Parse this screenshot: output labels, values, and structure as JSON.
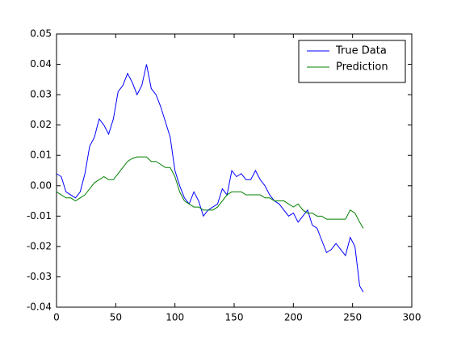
{
  "chart_data": {
    "type": "line",
    "x": [
      0,
      4,
      8,
      12,
      16,
      20,
      24,
      28,
      32,
      36,
      40,
      44,
      48,
      52,
      56,
      60,
      64,
      68,
      72,
      76,
      80,
      84,
      88,
      92,
      96,
      100,
      104,
      108,
      112,
      116,
      120,
      124,
      128,
      132,
      136,
      140,
      144,
      148,
      152,
      156,
      160,
      164,
      168,
      172,
      176,
      180,
      184,
      188,
      192,
      196,
      200,
      204,
      208,
      212,
      216,
      220,
      224,
      228,
      232,
      236,
      240,
      244,
      248,
      252,
      256,
      259
    ],
    "series": [
      {
        "name": "True Data",
        "color": "#0000ff",
        "values": [
          0.004,
          0.003,
          -0.002,
          -0.003,
          -0.004,
          -0.002,
          0.004,
          0.013,
          0.016,
          0.022,
          0.02,
          0.017,
          0.022,
          0.031,
          0.033,
          0.037,
          0.034,
          0.03,
          0.033,
          0.04,
          0.032,
          0.03,
          0.026,
          0.021,
          0.016,
          0.005,
          0.0,
          -0.004,
          -0.006,
          -0.002,
          -0.005,
          -0.01,
          -0.008,
          -0.007,
          -0.006,
          -0.001,
          -0.003,
          0.005,
          0.003,
          0.004,
          0.002,
          0.002,
          0.005,
          0.002,
          0.0,
          -0.003,
          -0.005,
          -0.006,
          -0.008,
          -0.01,
          -0.009,
          -0.012,
          -0.01,
          -0.008,
          -0.013,
          -0.014,
          -0.018,
          -0.022,
          -0.021,
          -0.019,
          -0.021,
          -0.023,
          -0.017,
          -0.02,
          -0.033,
          -0.035
        ]
      },
      {
        "name": "Prediction",
        "color": "#008000",
        "values": [
          -0.002,
          -0.003,
          -0.004,
          -0.004,
          -0.005,
          -0.004,
          -0.003,
          -0.001,
          0.001,
          0.002,
          0.003,
          0.002,
          0.002,
          0.004,
          0.006,
          0.008,
          0.009,
          0.0095,
          0.0095,
          0.0095,
          0.008,
          0.008,
          0.007,
          0.006,
          0.006,
          0.003,
          -0.002,
          -0.005,
          -0.006,
          -0.007,
          -0.007,
          -0.008,
          -0.008,
          -0.008,
          -0.007,
          -0.005,
          -0.003,
          -0.002,
          -0.002,
          -0.002,
          -0.003,
          -0.003,
          -0.003,
          -0.003,
          -0.004,
          -0.004,
          -0.005,
          -0.005,
          -0.005,
          -0.006,
          -0.007,
          -0.006,
          -0.008,
          -0.009,
          -0.009,
          -0.01,
          -0.01,
          -0.011,
          -0.011,
          -0.011,
          -0.011,
          -0.011,
          -0.008,
          -0.009,
          -0.012,
          -0.014
        ]
      }
    ],
    "xlim": [
      0,
      300
    ],
    "xticks": [
      0,
      50,
      100,
      150,
      200,
      250,
      300
    ],
    "ylim": [
      -0.04,
      0.05
    ],
    "yticks": [
      -0.04,
      -0.03,
      -0.02,
      -0.01,
      {
        "value": 0,
        "label": "0.00"
      },
      0.01,
      0.02,
      0.03,
      0.04,
      0.05
    ],
    "legend": "upper right"
  }
}
